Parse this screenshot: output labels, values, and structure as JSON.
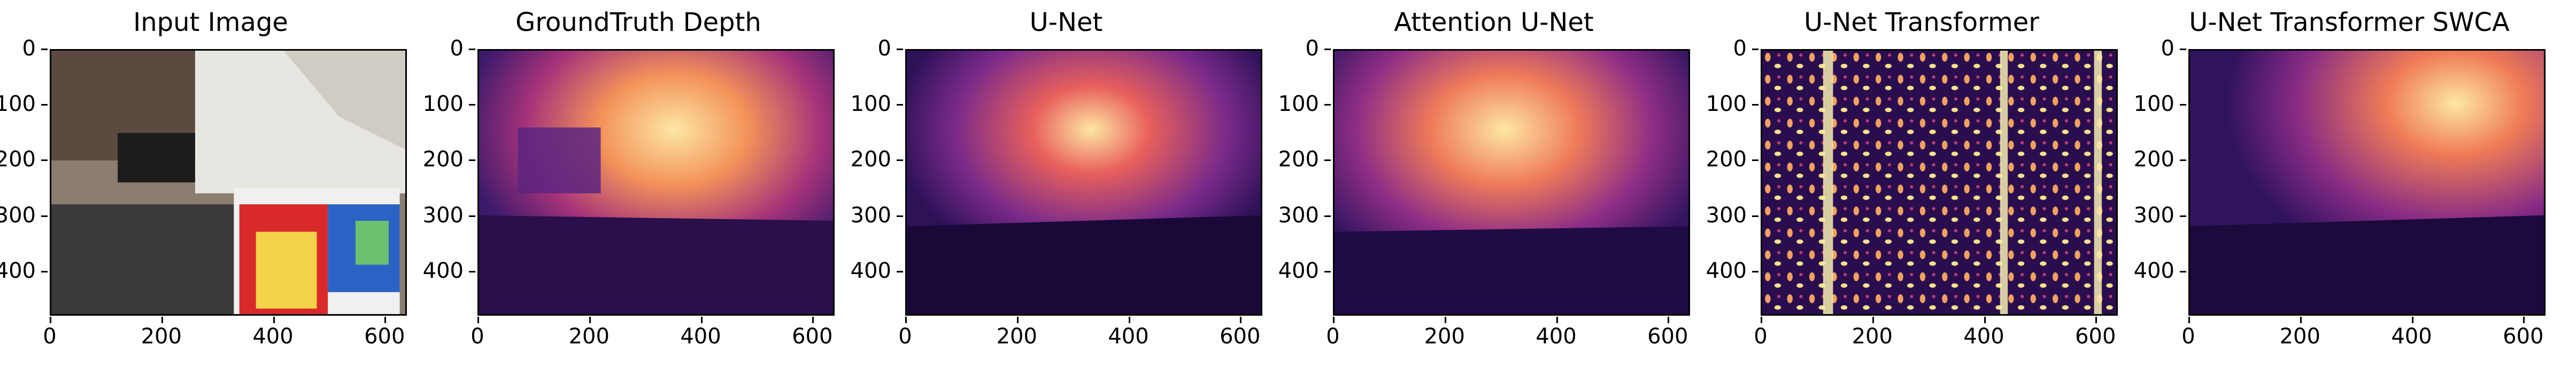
{
  "panels": [
    {
      "title": "Input Image"
    },
    {
      "title": "GroundTruth Depth"
    },
    {
      "title": "U-Net"
    },
    {
      "title": "Attention U-Net"
    },
    {
      "title": "U-Net Transformer"
    },
    {
      "title": "U-Net Transformer SWCA"
    }
  ],
  "axes": {
    "xticks": [
      "0",
      "200",
      "400",
      "600"
    ],
    "yticks": [
      "0",
      "100",
      "200",
      "300",
      "400"
    ]
  },
  "colors": {
    "depth_far": "#fcf6b5",
    "depth_mid": "#e8605c",
    "depth_near": "#3a1a6a",
    "depth_dark": "#0b0622"
  }
}
